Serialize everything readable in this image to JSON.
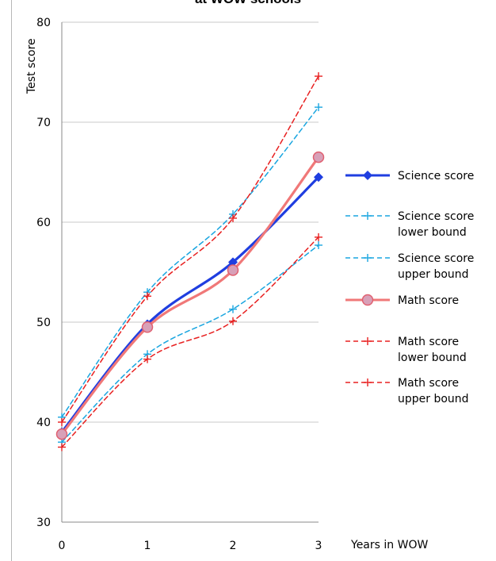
{
  "chart_data": {
    "type": "line",
    "title": "at WOW schools",
    "xlabel": "Years in WOW",
    "ylabel": "Test score",
    "x": [
      0,
      1,
      2,
      3
    ],
    "xticks": [
      "0",
      "1",
      "2",
      "3"
    ],
    "ylim": [
      30,
      80
    ],
    "yticks": [
      "30",
      "40",
      "50",
      "60",
      "70",
      "80"
    ],
    "grid": "horizontal",
    "legend_position": "right",
    "series": [
      {
        "name": "Science score",
        "values": [
          39.0,
          49.8,
          56.0,
          64.5
        ],
        "color": "#1f3ee0",
        "style": "solid",
        "marker": "diamond",
        "width": 3.2
      },
      {
        "name": "Science score lower bound",
        "values": [
          38.0,
          46.8,
          51.3,
          57.7
        ],
        "color": "#1aa6e0",
        "style": "dashed",
        "marker": "plus",
        "width": 1.5
      },
      {
        "name": "Science score upper bound",
        "values": [
          40.5,
          53.0,
          60.8,
          71.5
        ],
        "color": "#1aa6e0",
        "style": "dashed",
        "marker": "plus",
        "width": 1.5
      },
      {
        "name": "Math score",
        "values": [
          38.8,
          49.5,
          55.2,
          66.5
        ],
        "color": "#f07878",
        "style": "solid",
        "marker": "circle",
        "width": 3.2
      },
      {
        "name": "Math score lower bound",
        "values": [
          37.5,
          46.3,
          50.1,
          58.5
        ],
        "color": "#e82020",
        "style": "dashed",
        "marker": "plus",
        "width": 1.5
      },
      {
        "name": "Math score upper bound",
        "values": [
          40.0,
          52.6,
          60.4,
          74.6
        ],
        "color": "#e82020",
        "style": "dashed",
        "marker": "plus",
        "width": 1.5
      }
    ],
    "legend": [
      {
        "lines": [
          "Science score"
        ]
      },
      {
        "lines": [
          "Science score",
          "lower bound"
        ]
      },
      {
        "lines": [
          "Science score",
          "upper bound"
        ]
      },
      {
        "lines": [
          "Math score"
        ]
      },
      {
        "lines": [
          "Math score",
          "lower bound"
        ]
      },
      {
        "lines": [
          "Math score",
          "upper bound"
        ]
      }
    ]
  }
}
